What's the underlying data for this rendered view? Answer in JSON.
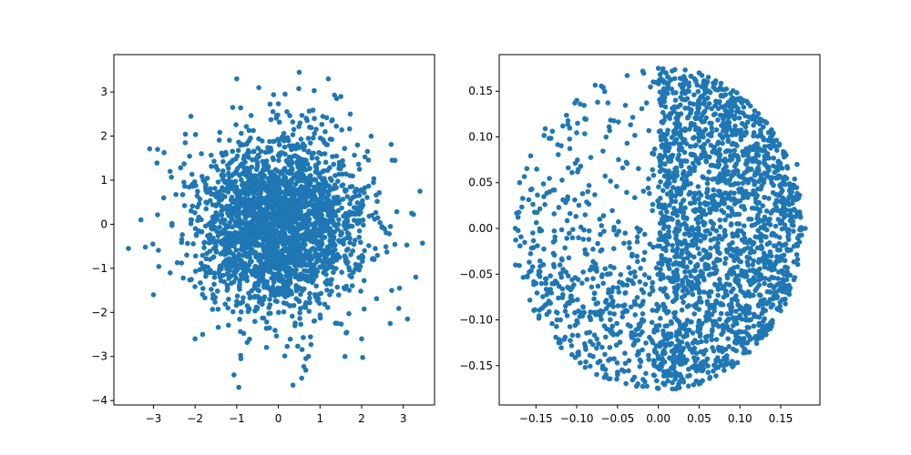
{
  "chart_data": [
    {
      "type": "scatter",
      "title": "",
      "xlabel": "",
      "ylabel": "",
      "xlim": [
        -3.95,
        3.75
      ],
      "ylim": [
        -4.1,
        3.85
      ],
      "xticks": [
        -3,
        -2,
        -1,
        0,
        1,
        2,
        3
      ],
      "yticks": [
        -4,
        -3,
        -2,
        -1,
        0,
        1,
        2,
        3
      ],
      "xtick_labels": [
        "−3",
        "−2",
        "−1",
        "0",
        "1",
        "2",
        "3"
      ],
      "ytick_labels": [
        "−4",
        "−3",
        "−2",
        "−1",
        "0",
        "1",
        "2",
        "3"
      ],
      "grid": false,
      "legend": "none",
      "series": [
        {
          "color": "#1f77b4",
          "distribution": "standard normal cloud, about 2500 points centered at (0, 0)",
          "x": [
            0.5,
            1.2,
            -1.0,
            3.4,
            -3.6,
            -3.3,
            3.2,
            3.3,
            2.8,
            -2.9,
            -3.0,
            -0.9,
            0.35,
            -0.95,
            3.1,
            -2.1,
            -2.6,
            2.0,
            2.3,
            -2.0,
            1.6,
            1.5,
            1.9,
            -1.4,
            -0.4,
            0.6,
            0.9,
            -0.6,
            1.0,
            -0.3,
            0.1,
            -0.1,
            0.2,
            -0.5,
            1.1,
            -1.1
          ],
          "y": [
            3.45,
            3.3,
            3.3,
            0.75,
            -0.55,
            0.1,
            0.25,
            -1.2,
            1.45,
            1.7,
            -1.6,
            -3.05,
            -3.65,
            -3.7,
            -2.15,
            2.45,
            1.2,
            -2.6,
            -0.8,
            -2.6,
            -3.0,
            2.9,
            1.8,
            -1.2,
            0.6,
            -0.4,
            1.3,
            0.9,
            0.2,
            -0.2,
            0.1,
            -0.6,
            0.4,
            -1.0,
            -0.3,
            0.5
          ]
        }
      ]
    },
    {
      "type": "scatter",
      "title": "",
      "xlabel": "",
      "ylabel": "",
      "xlim": [
        -0.195,
        0.198
      ],
      "ylim": [
        -0.193,
        0.19
      ],
      "xticks": [
        -0.15,
        -0.1,
        -0.05,
        0.0,
        0.05,
        0.1,
        0.15
      ],
      "yticks": [
        -0.15,
        -0.1,
        -0.05,
        0.0,
        0.05,
        0.1,
        0.15
      ],
      "xtick_labels": [
        "−0.15",
        "−0.10",
        "−0.05",
        "0.00",
        "0.05",
        "0.10",
        "0.15"
      ],
      "ytick_labels": [
        "−0.15",
        "−0.10",
        "−0.05",
        "0.00",
        "0.05",
        "0.10",
        "0.15"
      ],
      "grid": false,
      "legend": "none",
      "series": [
        {
          "color": "#1f77b4",
          "distribution": "disk of radius about 0.177 centered at (0, 0); dense on the right half, sparse upper-left",
          "x": [
            0.0,
            0.05,
            0.17,
            0.18,
            -0.175,
            -0.17,
            -0.1,
            0.0,
            0.1,
            0.15,
            0.12,
            0.08,
            0.05,
            0.02,
            -0.05,
            -0.08,
            -0.12,
            -0.15,
            0.07,
            0.1,
            0.13,
            0.06,
            0.09,
            0.11
          ],
          "y": [
            0.175,
            0.17,
            0.07,
            0.0,
            -0.04,
            0.05,
            0.14,
            -0.175,
            0.14,
            -0.09,
            -0.12,
            -0.15,
            -0.17,
            -0.16,
            -0.16,
            -0.14,
            -0.1,
            -0.06,
            -0.02,
            0.03,
            0.0,
            -0.08,
            -0.05,
            0.05
          ]
        }
      ]
    }
  ]
}
